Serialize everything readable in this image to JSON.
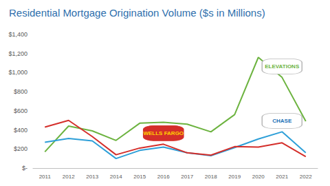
{
  "chart_data": {
    "type": "line",
    "title": "Residential Mortgage Origination Volume ($s in Millions)",
    "categories": [
      "2011",
      "2012",
      "2013",
      "2014",
      "2015",
      "2016",
      "2017",
      "2018",
      "2019",
      "2020",
      "2021",
      "2022"
    ],
    "series": [
      {
        "name": "ELEVATIONS",
        "color": "#6cb33f",
        "values": [
          170,
          440,
          390,
          290,
          470,
          480,
          460,
          380,
          560,
          1160,
          950,
          490
        ]
      },
      {
        "name": "CHASE",
        "color": "#2d9fd8",
        "values": [
          270,
          310,
          285,
          100,
          185,
          220,
          160,
          130,
          215,
          305,
          380,
          160
        ]
      },
      {
        "name": "WELLS FARGO",
        "color": "#d42e2a",
        "values": [
          430,
          500,
          330,
          140,
          210,
          250,
          160,
          135,
          225,
          220,
          265,
          120
        ]
      }
    ],
    "ylim": [
      0,
      1400
    ],
    "yticks": [
      {
        "value": 0,
        "label": "$-"
      },
      {
        "value": 200,
        "label": "$200"
      },
      {
        "value": 400,
        "label": "$400"
      },
      {
        "value": 600,
        "label": "$600"
      },
      {
        "value": 800,
        "label": "$800"
      },
      {
        "value": 1000,
        "label": "$1,000"
      },
      {
        "value": 1200,
        "label": "$1,200"
      },
      {
        "value": 1400,
        "label": "$1,400"
      }
    ],
    "grid": false
  }
}
